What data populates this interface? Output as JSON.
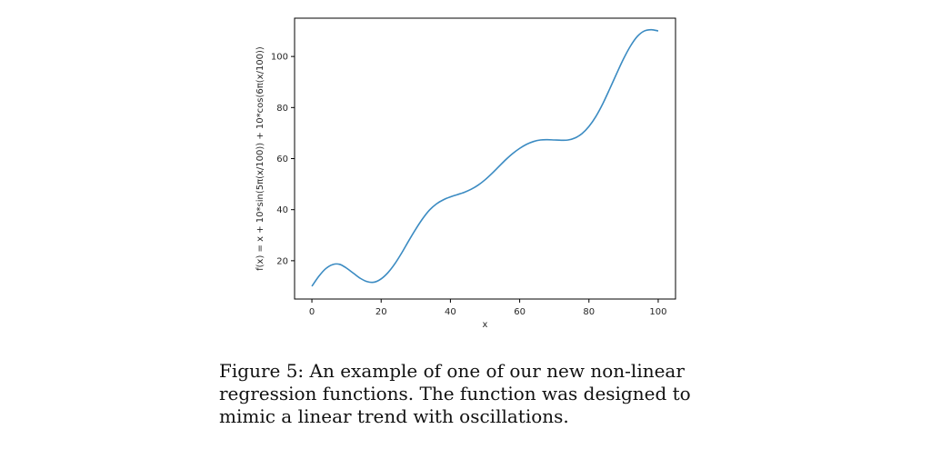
{
  "chart_data": {
    "type": "line",
    "xlabel": "x",
    "ylabel": "f(x) = x + 10*sin(5π(x/100)) + 10*cos(6π(x/100))",
    "xlim": [
      -5,
      105
    ],
    "ylim": [
      5,
      115
    ],
    "xticks": [
      0,
      20,
      40,
      60,
      80,
      100
    ],
    "yticks": [
      20,
      40,
      60,
      80,
      100
    ],
    "grid": false,
    "line_color": "#3b8bc2",
    "series": [
      {
        "x": [
          0,
          2,
          4,
          6,
          8,
          10,
          12,
          14,
          16,
          18,
          20,
          22,
          24,
          26,
          28,
          30,
          32,
          34,
          36,
          38,
          40,
          42,
          44,
          46,
          48,
          50,
          52,
          54,
          56,
          58,
          60,
          62,
          64,
          66,
          68,
          70,
          72,
          74,
          76,
          78,
          80,
          82,
          84,
          86,
          88,
          90,
          92,
          94,
          96,
          98,
          100
        ],
        "y": [
          10,
          13.9,
          16.9,
          18.5,
          18.6,
          17.1,
          15.1,
          13.1,
          11.8,
          11.6,
          12.9,
          15.4,
          18.9,
          23.2,
          27.9,
          32.4,
          36.5,
          39.9,
          42.3,
          43.9,
          45.0,
          45.9,
          46.8,
          48.0,
          49.6,
          51.7,
          54.2,
          56.9,
          59.6,
          62.0,
          64.0,
          65.6,
          66.7,
          67.3,
          67.4,
          67.3,
          67.2,
          67.3,
          68.1,
          69.8,
          72.6,
          76.5,
          81.5,
          87.3,
          93.3,
          99.1,
          104.1,
          107.9,
          110.0,
          110.5,
          110.0
        ]
      }
    ]
  },
  "caption": {
    "line1": "Figure 5: An example of one of our new non-linear",
    "line2": "regression functions. The function was designed to",
    "line3": "mimic a linear trend with oscillations."
  }
}
